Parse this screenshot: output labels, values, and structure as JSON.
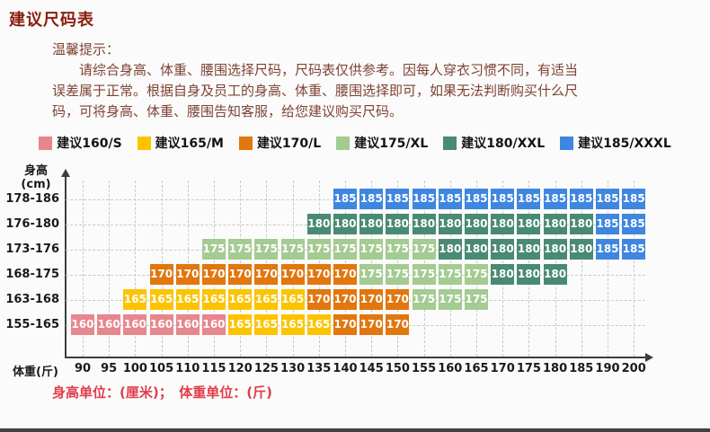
{
  "page": {
    "title": "建议尺码表",
    "tips_lines": [
      "温馨提示：",
      "　　请综合身高、体重、腰围选择尺码，尺码表仅供参考。因每人穿衣习惯不同，有适当",
      "误差属于正常。根据自身及员工的身高、体重、腰围选择即可，如果无法判断购买什么尺",
      "码，可将身高、体重、腰围告知客服，给您建议购买尺码。"
    ],
    "footnote": "身高单位：(厘米)；　体重单位：(斤)"
  },
  "legend": {
    "items": [
      {
        "label": "建议160/S",
        "color": "#e8868d"
      },
      {
        "label": "建议165/M",
        "color": "#fcc400"
      },
      {
        "label": "建议170/L",
        "color": "#e1770e"
      },
      {
        "label": "建议175/XL",
        "color": "#a4cb91"
      },
      {
        "label": "建议180/XXL",
        "color": "#498a72"
      },
      {
        "label": "建议185/XXXL",
        "color": "#3e86e0"
      }
    ]
  },
  "chart_data": {
    "type": "heatmap",
    "title": "建议尺码表",
    "xlabel": "体重(斤)",
    "ylabel": "身高",
    "ylabel_unit": "(cm)",
    "grid": true,
    "legend_position": "top",
    "x_ticks": [
      "90",
      "95",
      "100",
      "105",
      "110",
      "115",
      "120",
      "125",
      "130",
      "135",
      "140",
      "145",
      "150",
      "155",
      "160",
      "165",
      "170",
      "175",
      "180",
      "185",
      "190",
      "200"
    ],
    "y_ticks": [
      "178-186",
      "176-180",
      "173-176",
      "168-175",
      "163-168",
      "155-165"
    ],
    "size_colors": {
      "160": "#e8868d",
      "165": "#fcc400",
      "170": "#e1770e",
      "175": "#a4cb91",
      "180": "#498a72",
      "185": "#3e86e0"
    },
    "rows": [
      {
        "height_range": "178-186",
        "segments": [
          {
            "size": "185",
            "from_weight": "140",
            "to_weight": "200"
          }
        ]
      },
      {
        "height_range": "176-180",
        "segments": [
          {
            "size": "180",
            "from_weight": "135",
            "to_weight": "185"
          },
          {
            "size": "185",
            "from_weight": "190",
            "to_weight": "200"
          }
        ]
      },
      {
        "height_range": "173-176",
        "segments": [
          {
            "size": "175",
            "from_weight": "115",
            "to_weight": "155"
          },
          {
            "size": "180",
            "from_weight": "160",
            "to_weight": "185"
          },
          {
            "size": "185",
            "from_weight": "190",
            "to_weight": "200"
          }
        ]
      },
      {
        "height_range": "168-175",
        "segments": [
          {
            "size": "170",
            "from_weight": "105",
            "to_weight": "140"
          },
          {
            "size": "175",
            "from_weight": "145",
            "to_weight": "165"
          },
          {
            "size": "180",
            "from_weight": "170",
            "to_weight": "180"
          }
        ]
      },
      {
        "height_range": "163-168",
        "segments": [
          {
            "size": "165",
            "from_weight": "100",
            "to_weight": "130"
          },
          {
            "size": "170",
            "from_weight": "135",
            "to_weight": "150"
          },
          {
            "size": "175",
            "from_weight": "155",
            "to_weight": "165"
          }
        ]
      },
      {
        "height_range": "155-165",
        "segments": [
          {
            "size": "160",
            "from_weight": "90",
            "to_weight": "115"
          },
          {
            "size": "165",
            "from_weight": "120",
            "to_weight": "135"
          },
          {
            "size": "170",
            "from_weight": "140",
            "to_weight": "150"
          }
        ]
      }
    ]
  }
}
